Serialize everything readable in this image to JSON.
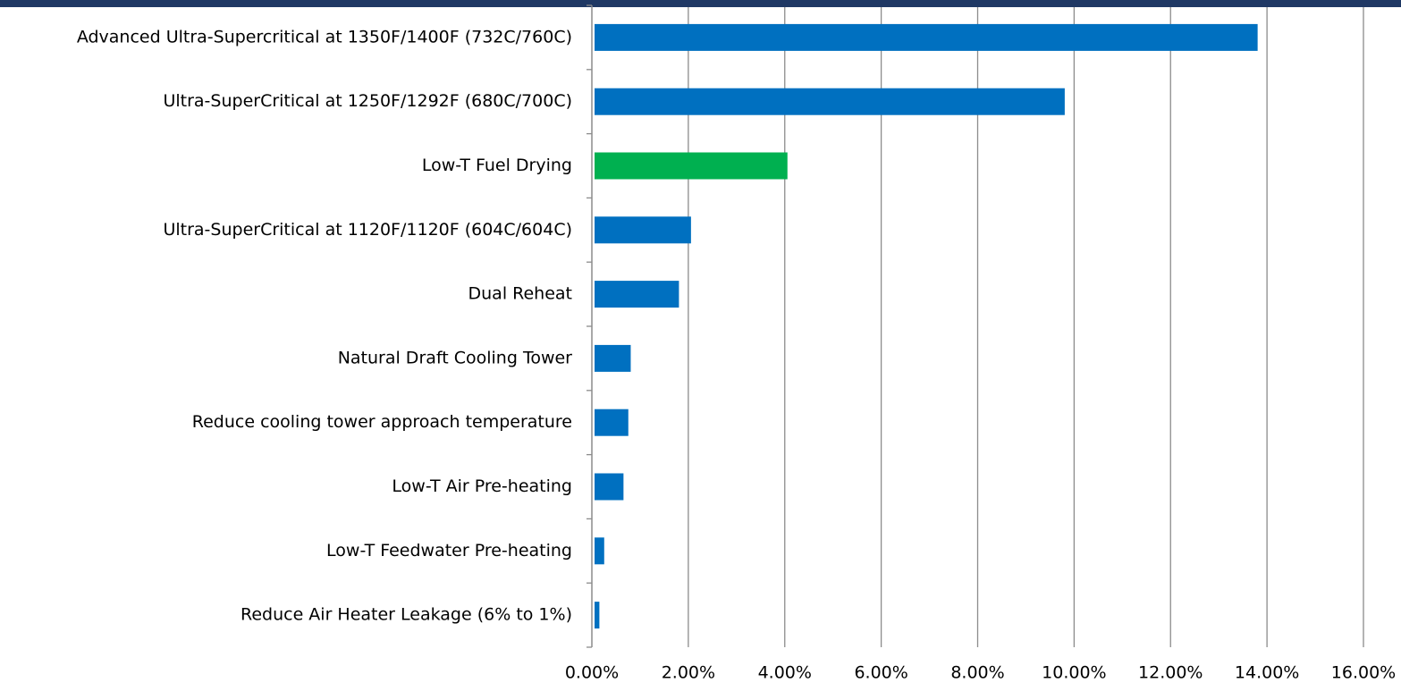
{
  "chart_data": {
    "type": "hbar",
    "categories": [
      "Advanced Ultra-Supercritical at 1350F/1400F (732C/760C)",
      "Ultra-SuperCritical at 1250F/1292F (680C/700C)",
      "Low-T Fuel Drying",
      "Ultra-SuperCritical at 1120F/1120F (604C/604C)",
      "Dual Reheat",
      "Natural Draft Cooling Tower",
      "Reduce cooling tower approach temperature",
      "Low-T Air Pre-heating",
      "Low-T Feedwater Pre-heating",
      "Reduce Air Heater Leakage (6% to 1%)"
    ],
    "values": [
      13.75,
      9.75,
      4.0,
      2.0,
      1.75,
      0.75,
      0.7,
      0.6,
      0.2,
      0.1
    ],
    "colors": [
      "#0070c0",
      "#0070c0",
      "#00b050",
      "#0070c0",
      "#0070c0",
      "#0070c0",
      "#0070c0",
      "#0070c0",
      "#0070c0",
      "#0070c0"
    ],
    "xlim": [
      0,
      16
    ],
    "xticks": [
      {
        "value": 0,
        "label": "0.00%"
      },
      {
        "value": 2,
        "label": "2.00%"
      },
      {
        "value": 4,
        "label": "4.00%"
      },
      {
        "value": 6,
        "label": "6.00%"
      },
      {
        "value": 8,
        "label": "8.00%"
      },
      {
        "value": 10,
        "label": "10.00%"
      },
      {
        "value": 12,
        "label": "12.00%"
      },
      {
        "value": 14,
        "label": "14.00%"
      },
      {
        "value": 16,
        "label": "16.00%"
      }
    ],
    "grid": true
  }
}
